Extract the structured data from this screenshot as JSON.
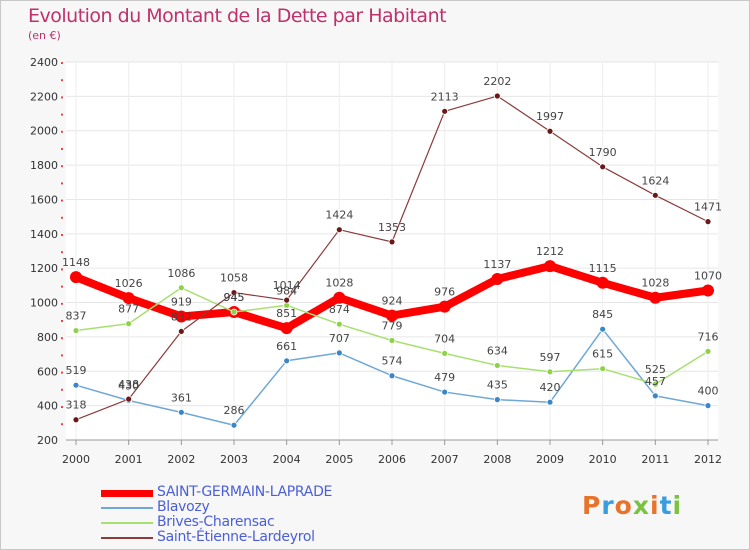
{
  "header": {
    "title": "Evolution du Montant de la Dette par Habitant",
    "subtitle": "(en €)"
  },
  "logo": {
    "text": "Proxiti",
    "colors": [
      "#e8742c",
      "#3a9de0",
      "#e8742c",
      "#7cc242",
      "#e8742c",
      "#3a9de0",
      "#7cc242"
    ]
  },
  "chart_data": {
    "type": "line",
    "title": "Evolution du Montant de la Dette par Habitant",
    "ylabel": "(en €)",
    "xlabel": "",
    "x": [
      "2000",
      "2001",
      "2002",
      "2003",
      "2004",
      "2005",
      "2006",
      "2007",
      "2008",
      "2009",
      "2010",
      "2011",
      "2012"
    ],
    "ylim": [
      200,
      2400
    ],
    "yticks": [
      200,
      400,
      600,
      800,
      1000,
      1200,
      1400,
      1600,
      1800,
      2000,
      2200,
      2400
    ],
    "grid": true,
    "legend": "bottom-left",
    "series": [
      {
        "name": "SAINT-GERMAIN-LAPRADE",
        "color": "#ff0000",
        "marker": "#ff0000",
        "width": 8,
        "values": [
          1148,
          1026,
          919,
          945,
          851,
          1028,
          924,
          976,
          1137,
          1212,
          1115,
          1028,
          1070
        ]
      },
      {
        "name": "Blavozy",
        "color": "#6fa8d6",
        "marker": "#3a86c8",
        "width": 1.5,
        "values": [
          519,
          430,
          361,
          286,
          661,
          707,
          574,
          479,
          435,
          420,
          845,
          457,
          400
        ]
      },
      {
        "name": "Brives-Charensac",
        "color": "#a8e070",
        "marker": "#8fd24a",
        "width": 1.5,
        "values": [
          837,
          877,
          1086,
          945,
          984,
          874,
          779,
          704,
          634,
          597,
          615,
          525,
          716
        ]
      },
      {
        "name": "Saint-Étienne-Lardeyrol",
        "color": "#8c3a3a",
        "marker": "#6a1818",
        "width": 1.2,
        "values": [
          318,
          438,
          832,
          1058,
          1014,
          1424,
          1353,
          2113,
          2202,
          1997,
          1790,
          1624,
          1471
        ]
      }
    ]
  }
}
